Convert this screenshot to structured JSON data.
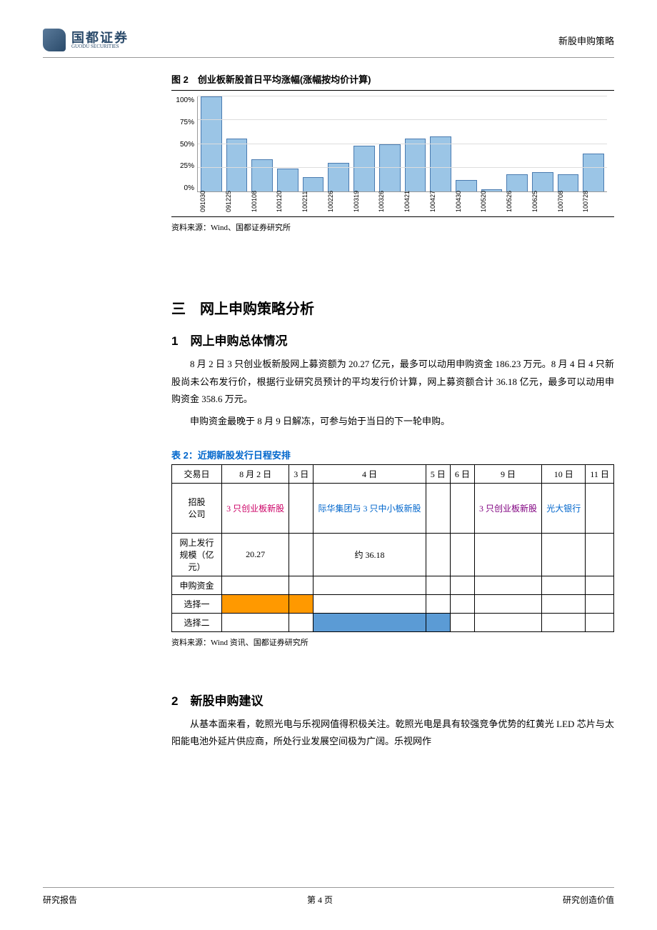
{
  "header": {
    "logo_cn": "国都证券",
    "logo_en": "GUODU SECURITIES",
    "right": "新股申购策略"
  },
  "chart": {
    "type": "bar",
    "caption": "图 2　创业板新股首日平均涨幅(涨幅按均价计算)",
    "ylim": [
      0,
      100
    ],
    "ytick_step": 25,
    "ytick_labels": [
      "100%",
      "75%",
      "50%",
      "25%",
      "0%"
    ],
    "categories": [
      "091030",
      "091225",
      "100108",
      "100120",
      "100211",
      "100226",
      "100319",
      "100326",
      "100421",
      "100427",
      "100430",
      "100520",
      "100526",
      "100625",
      "100708",
      "100728"
    ],
    "values": [
      100,
      56,
      34,
      24,
      15,
      30,
      48,
      50,
      56,
      58,
      12,
      2,
      18,
      20,
      18,
      40
    ],
    "bar_color": "#9bc5e6",
    "bar_border": "#4a7bb0",
    "grid_color": "#dddddd",
    "label_fontsize": 10,
    "source": "资料来源：Wind、国都证券研究所"
  },
  "section": {
    "h1": "三　网上申购策略分析",
    "h2_1": "1　网上申购总体情况",
    "p1": "8 月 2 日 3 只创业板新股网上募资额为 20.27 亿元，最多可以动用申购资金 186.23 万元。8 月 4 日 4 只新股尚未公布发行价，根据行业研究员预计的平均发行价计算，网上募资额合计 36.18 亿元，最多可以动用申购资金 358.6 万元。",
    "p2": "申购资金最晚于 8 月 9 日解冻，可参与始于当日的下一轮申购。"
  },
  "table": {
    "caption": "表 2：近期新股发行日程安排",
    "header_cells": [
      "交易日",
      "8 月 2 日",
      "3 日",
      "4 日",
      "5 日",
      "6 日",
      "9 日",
      "10 日",
      "11 日"
    ],
    "row_company_label": "招股\n公司",
    "company_cells": [
      "3 只创业板新股",
      "",
      "际华集团与 3 只中小板新股",
      "",
      "",
      "3 只创业板新股",
      "光大银行",
      ""
    ],
    "company_colors": [
      "link-red",
      "",
      "link-blue",
      "",
      "",
      "link-purple",
      "link-blue",
      ""
    ],
    "row_scale_label": "网上发行规模（亿元）",
    "scale_cells": [
      "20.27",
      "",
      "约 36.18",
      "",
      "",
      "",
      "",
      ""
    ],
    "row_fund_label": "申购资金",
    "row_opt1_label": "选择一",
    "row_opt2_label": "选择二",
    "fill_orange": "#ff9900",
    "fill_blue": "#5b9bd5",
    "source": "资料来源：Wind 资讯、国都证券研究所"
  },
  "section2": {
    "h2": "2　新股申购建议",
    "p": "从基本面来看，乾照光电与乐视网值得积极关注。乾照光电是具有较强竞争优势的红黄光 LED 芯片与太阳能电池外延片供应商，所处行业发展空间极为广阔。乐视网作"
  },
  "footer": {
    "left": "研究报告",
    "center": "第 4 页",
    "right": "研究创造价值"
  }
}
